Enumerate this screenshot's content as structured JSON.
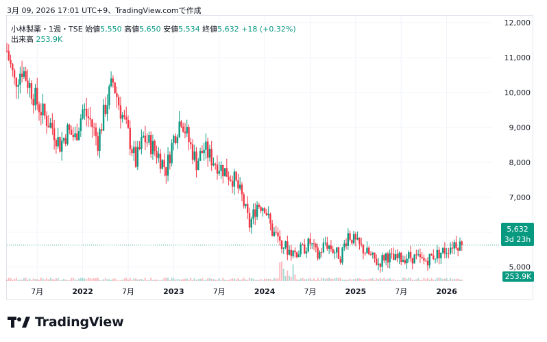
{
  "caption": "3月 09, 2026 17:01 UTC+9、TradingView.comで作成",
  "legend": {
    "symbol": "小林製薬・1週・TSE",
    "open_label": "始値",
    "open": "5,550",
    "high_label": "高値",
    "high": "5,650",
    "low_label": "安値",
    "low": "5,534",
    "close_label": "終値",
    "close": "5,632",
    "change": "+18 (+0.32%)",
    "volume_label": "出来高",
    "volume": "253.9K"
  },
  "price_tag": {
    "price": "5,632",
    "countdown": "3d 23h"
  },
  "volume_tag": "253.9K",
  "logo_text": "TradingView",
  "colors": {
    "up": "#089981",
    "down": "#f23645",
    "grid": "#f0f3fa"
  },
  "chart_data": {
    "type": "candlestick",
    "y_ticks": [
      "12,000",
      "11,000",
      "10,000",
      "9,000",
      "8,000",
      "7,000",
      "6,000",
      "5,000"
    ],
    "y_tick_values": [
      12000,
      11000,
      10000,
      9000,
      8000,
      7000,
      6000,
      5000
    ],
    "ylim": [
      4600,
      12200
    ],
    "x_ticks": [
      {
        "label": "7月",
        "date": "2021-07",
        "bold": false
      },
      {
        "label": "2022",
        "date": "2022-01",
        "bold": true
      },
      {
        "label": "7月",
        "date": "2022-07",
        "bold": false
      },
      {
        "label": "2023",
        "date": "2023-01",
        "bold": true
      },
      {
        "label": "7月",
        "date": "2023-07",
        "bold": false
      },
      {
        "label": "2024",
        "date": "2024-01",
        "bold": true
      },
      {
        "label": "7月",
        "date": "2024-07",
        "bold": false
      },
      {
        "label": "2025",
        "date": "2025-01",
        "bold": true
      },
      {
        "label": "7月",
        "date": "2025-07",
        "bold": false
      },
      {
        "label": "2026",
        "date": "2026-01",
        "bold": true
      }
    ],
    "xlim": [
      "2021-03",
      "2026-07"
    ],
    "close_series": [
      [
        "2021-03",
        11200
      ],
      [
        "2021-04",
        10300
      ],
      [
        "2021-05",
        10700
      ],
      [
        "2021-06",
        10200
      ],
      [
        "2021-07",
        9700
      ],
      [
        "2021-08",
        9300
      ],
      [
        "2021-09",
        9000
      ],
      [
        "2021-10",
        8500
      ],
      [
        "2021-11",
        8900
      ],
      [
        "2021-12",
        8700
      ],
      [
        "2022-01",
        9500
      ],
      [
        "2022-02",
        9200
      ],
      [
        "2022-03",
        8600
      ],
      [
        "2022-04",
        9600
      ],
      [
        "2022-05",
        10300
      ],
      [
        "2022-06",
        9500
      ],
      [
        "2022-07",
        8800
      ],
      [
        "2022-08",
        8000
      ],
      [
        "2022-09",
        8700
      ],
      [
        "2022-10",
        8500
      ],
      [
        "2022-11",
        8200
      ],
      [
        "2022-12",
        7800
      ],
      [
        "2023-01",
        8700
      ],
      [
        "2023-02",
        9300
      ],
      [
        "2023-03",
        8600
      ],
      [
        "2023-04",
        8000
      ],
      [
        "2023-05",
        8400
      ],
      [
        "2023-06",
        8100
      ],
      [
        "2023-07",
        7900
      ],
      [
        "2023-08",
        7700
      ],
      [
        "2023-09",
        7500
      ],
      [
        "2023-10",
        7000
      ],
      [
        "2023-11",
        6200
      ],
      [
        "2023-12",
        6800
      ],
      [
        "2024-01",
        6750
      ],
      [
        "2024-02",
        6000
      ],
      [
        "2024-03",
        5800
      ],
      [
        "2024-04",
        5500
      ],
      [
        "2024-05",
        5400
      ],
      [
        "2024-06",
        5500
      ],
      [
        "2024-07",
        5700
      ],
      [
        "2024-08",
        5300
      ],
      [
        "2024-09",
        5700
      ],
      [
        "2024-10",
        5500
      ],
      [
        "2024-11",
        5300
      ],
      [
        "2024-12",
        5950
      ],
      [
        "2025-01",
        5700
      ],
      [
        "2025-02",
        5500
      ],
      [
        "2025-03",
        5300
      ],
      [
        "2025-04",
        5100
      ],
      [
        "2025-05",
        5350
      ],
      [
        "2025-06",
        5200
      ],
      [
        "2025-07",
        5250
      ],
      [
        "2025-08",
        5300
      ],
      [
        "2025-09",
        5250
      ],
      [
        "2025-10",
        5150
      ],
      [
        "2025-11",
        5300
      ],
      [
        "2025-12",
        5400
      ],
      [
        "2026-01",
        5500
      ],
      [
        "2026-02",
        5700
      ],
      [
        "2026-03",
        5632
      ]
    ],
    "last_close": 5632
  }
}
